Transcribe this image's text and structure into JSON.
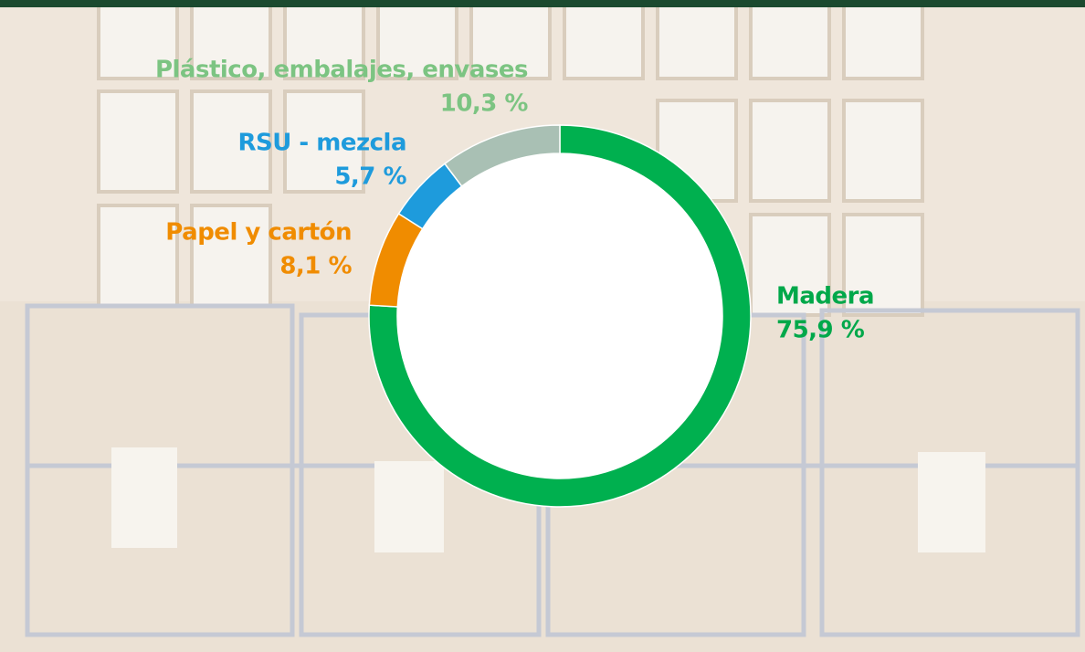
{
  "chart_data": {
    "type": "pie",
    "categories": [
      "Madera",
      "Papel y cartón",
      "RSU - mezcla",
      "Plástico, embalajes, envases"
    ],
    "values": [
      75.9,
      8.1,
      5.7,
      10.3
    ],
    "value_labels": [
      "75,9 %",
      "8,1 %",
      "5,7 %",
      "10,3 %"
    ],
    "colors": [
      "#00b04f",
      "#f08c00",
      "#1e9bdc",
      "#a9c0b4"
    ],
    "label_colors": [
      "#00a84a",
      "#f08c00",
      "#1e9bdc",
      "#7cc482"
    ],
    "donut": true
  }
}
